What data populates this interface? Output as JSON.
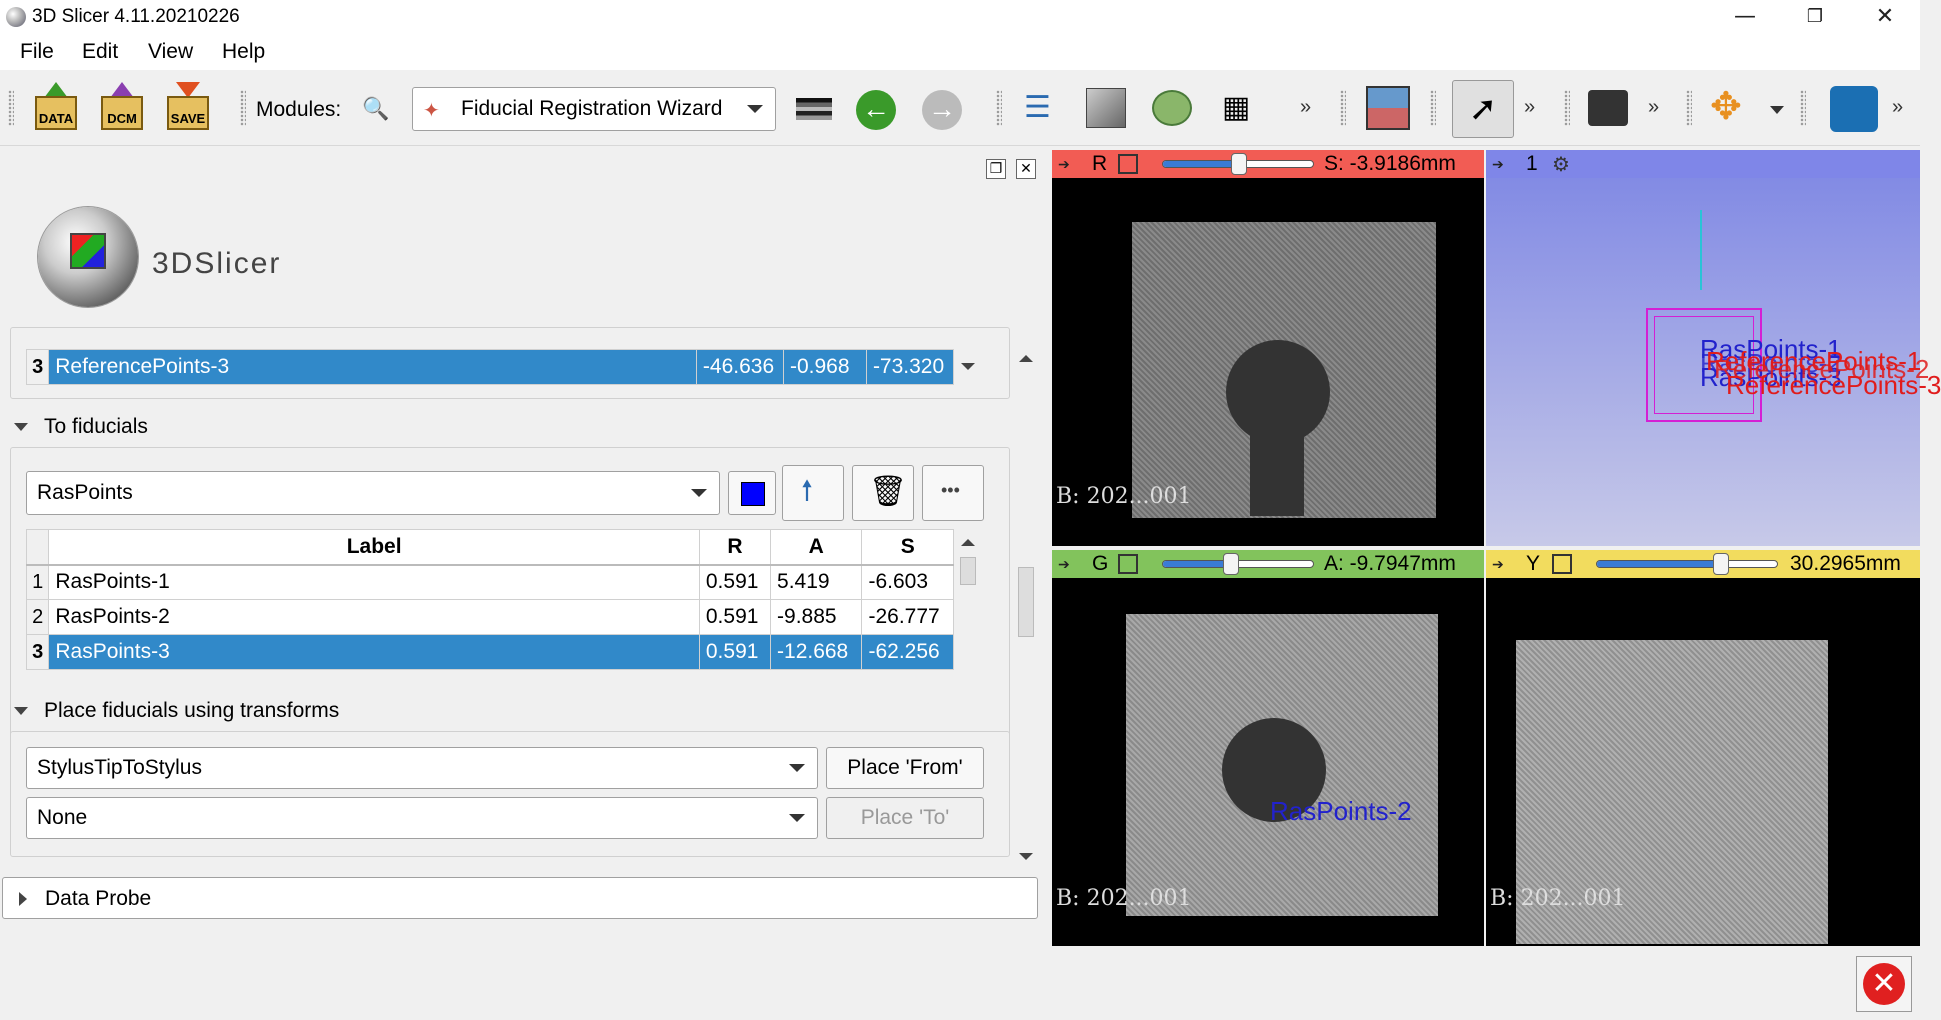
{
  "window": {
    "title": "3D Slicer 4.11.20210226"
  },
  "menu": [
    "File",
    "Edit",
    "View",
    "Help"
  ],
  "toolbar": {
    "data_label": "DATA",
    "dcm_label": "DCM",
    "save_label": "SAVE",
    "modules_label": "Modules:",
    "module_selected": "Fiducial Registration Wizard",
    "more_glyph": "»"
  },
  "logo": {
    "text": "3DSlicer"
  },
  "from_table": {
    "rows": [
      {
        "num": "3",
        "label": "ReferencePoints-3",
        "r": "-46.636",
        "a": "-0.968",
        "s": "-73.320"
      }
    ]
  },
  "to_fiducials": {
    "title": "To fiducials",
    "selected": "RasPoints",
    "columns": {
      "label": "Label",
      "r": "R",
      "a": "A",
      "s": "S"
    },
    "rows": [
      {
        "num": "1",
        "label": "RasPoints-1",
        "r": "0.591",
        "a": "5.419",
        "s": "-6.603"
      },
      {
        "num": "2",
        "label": "RasPoints-2",
        "r": "0.591",
        "a": "-9.885",
        "s": "-26.777"
      },
      {
        "num": "3",
        "label": "RasPoints-3",
        "r": "0.591",
        "a": "-12.668",
        "s": "-62.256"
      }
    ],
    "color_swatch": "#0000ff"
  },
  "place_transforms": {
    "title": "Place fiducials using transforms",
    "from_transform": "StylusTipToStylus",
    "to_transform": "None",
    "place_from_label": "Place 'From'",
    "place_to_label": "Place 'To'"
  },
  "data_probe": {
    "title": "Data Probe"
  },
  "views": {
    "red": {
      "label": "R",
      "value": "S: -3.9186mm",
      "slider_fraction": 0.5,
      "corner": "B: 202...001",
      "color": "#f25c54"
    },
    "threeD": {
      "label": "1",
      "color": "#7f86e8"
    },
    "green": {
      "label": "G",
      "value": "A: -9.7947mm",
      "slider_fraction": 0.45,
      "corner": "B: 202...001",
      "color": "#82c35c"
    },
    "yellow": {
      "label": "Y",
      "value": "30.2965mm",
      "slider_fraction": 0.68,
      "corner": "B: 202...001",
      "color": "#f2dc5e"
    }
  },
  "annotations_3d": {
    "blue_labels": [
      "RasPoints-1",
      "RasPoints-2",
      "RasPoints-3"
    ],
    "red_labels": [
      "ReferencePoints-1",
      "ReferencePoints-2",
      "ReferencePoints-3"
    ]
  },
  "annotation_green": "RasPoints-2"
}
